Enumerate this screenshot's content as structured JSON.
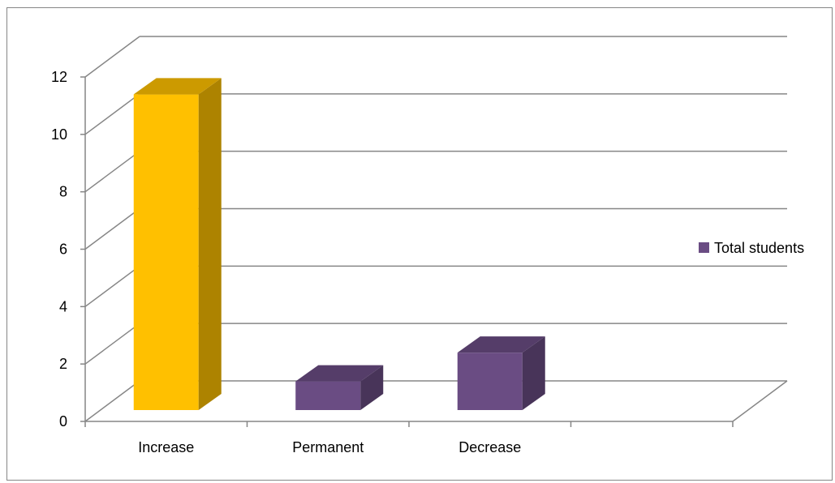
{
  "chart_data": {
    "type": "bar",
    "style": "3d-clustered-column",
    "categories": [
      "Increase",
      "Permanent",
      "Decrease",
      ""
    ],
    "series": [
      {
        "name": "Total students",
        "values": [
          11,
          1,
          2,
          null
        ],
        "color": "#6a4c83"
      }
    ],
    "point_colors": [
      "#ffc000",
      "#6a4c83",
      "#6a4c83"
    ],
    "ylim": [
      0,
      12
    ],
    "yticks": [
      0,
      2,
      4,
      6,
      8,
      10,
      12
    ],
    "gridlines": true,
    "legend": "right",
    "title": "",
    "xlabel": "",
    "ylabel": ""
  }
}
